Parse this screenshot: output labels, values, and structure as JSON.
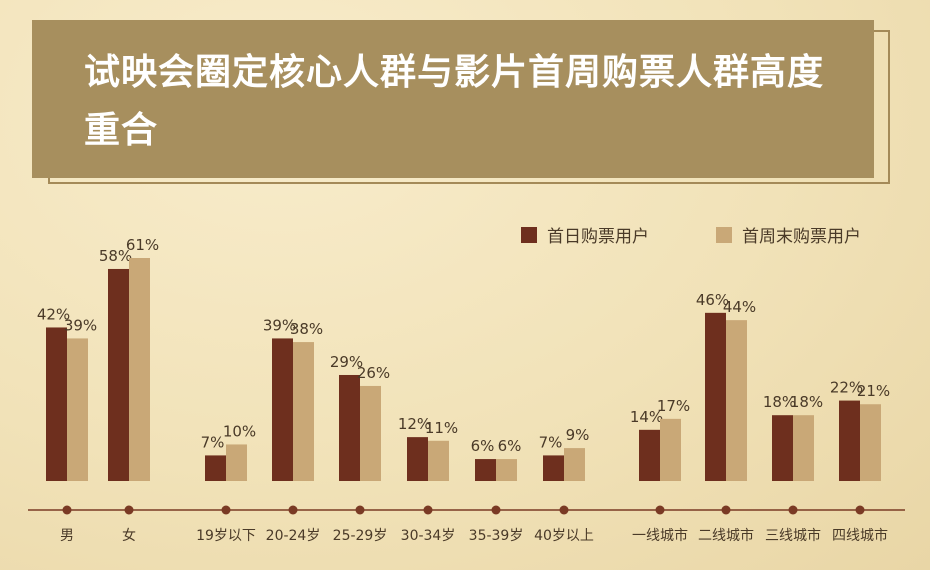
{
  "banner": {
    "title": "试映会圈定核心人群与影片首周购票人群高度重合"
  },
  "colors": {
    "series1": "#6e2f1e",
    "series2": "#c9a877",
    "banner": "#a78f5e",
    "axis": "#7a3a24",
    "label": "#4a3a28"
  },
  "chart_data": {
    "type": "bar",
    "categories": [
      "男",
      "女",
      "19岁以下",
      "20-24岁",
      "25-29岁",
      "30-34岁",
      "35-39岁",
      "40岁以上",
      "一线城市",
      "二线城市",
      "三线城市",
      "四线城市"
    ],
    "series": [
      {
        "name": "首日购票用户",
        "values": [
          42,
          58,
          7,
          39,
          29,
          12,
          6,
          7,
          14,
          46,
          18,
          22
        ]
      },
      {
        "name": "首周末购票用户",
        "values": [
          39,
          61,
          10,
          38,
          26,
          11,
          6,
          9,
          17,
          44,
          18,
          21
        ]
      }
    ],
    "value_suffix": "%",
    "ylim": [
      0,
      61
    ],
    "legend_position": "top-right",
    "grid": false
  }
}
